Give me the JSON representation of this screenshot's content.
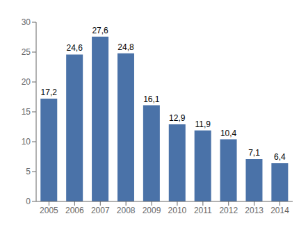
{
  "chart_data": {
    "type": "bar",
    "categories": [
      "2005",
      "2006",
      "2007",
      "2008",
      "2009",
      "2010",
      "2011",
      "2012",
      "2013",
      "2014"
    ],
    "values": [
      17.2,
      24.6,
      27.6,
      24.8,
      16.1,
      12.9,
      11.9,
      10.4,
      7.1,
      6.4
    ],
    "value_labels": [
      "17,2",
      "24,6",
      "27,6",
      "24,8",
      "16,1",
      "12,9",
      "11,9",
      "10,4",
      "7,1",
      "6,4"
    ],
    "color": "#4a72a8",
    "ylim": [
      0,
      30
    ],
    "yticks": [
      0,
      5,
      10,
      15,
      20,
      25,
      30
    ],
    "grid": false,
    "data_labels": true
  }
}
